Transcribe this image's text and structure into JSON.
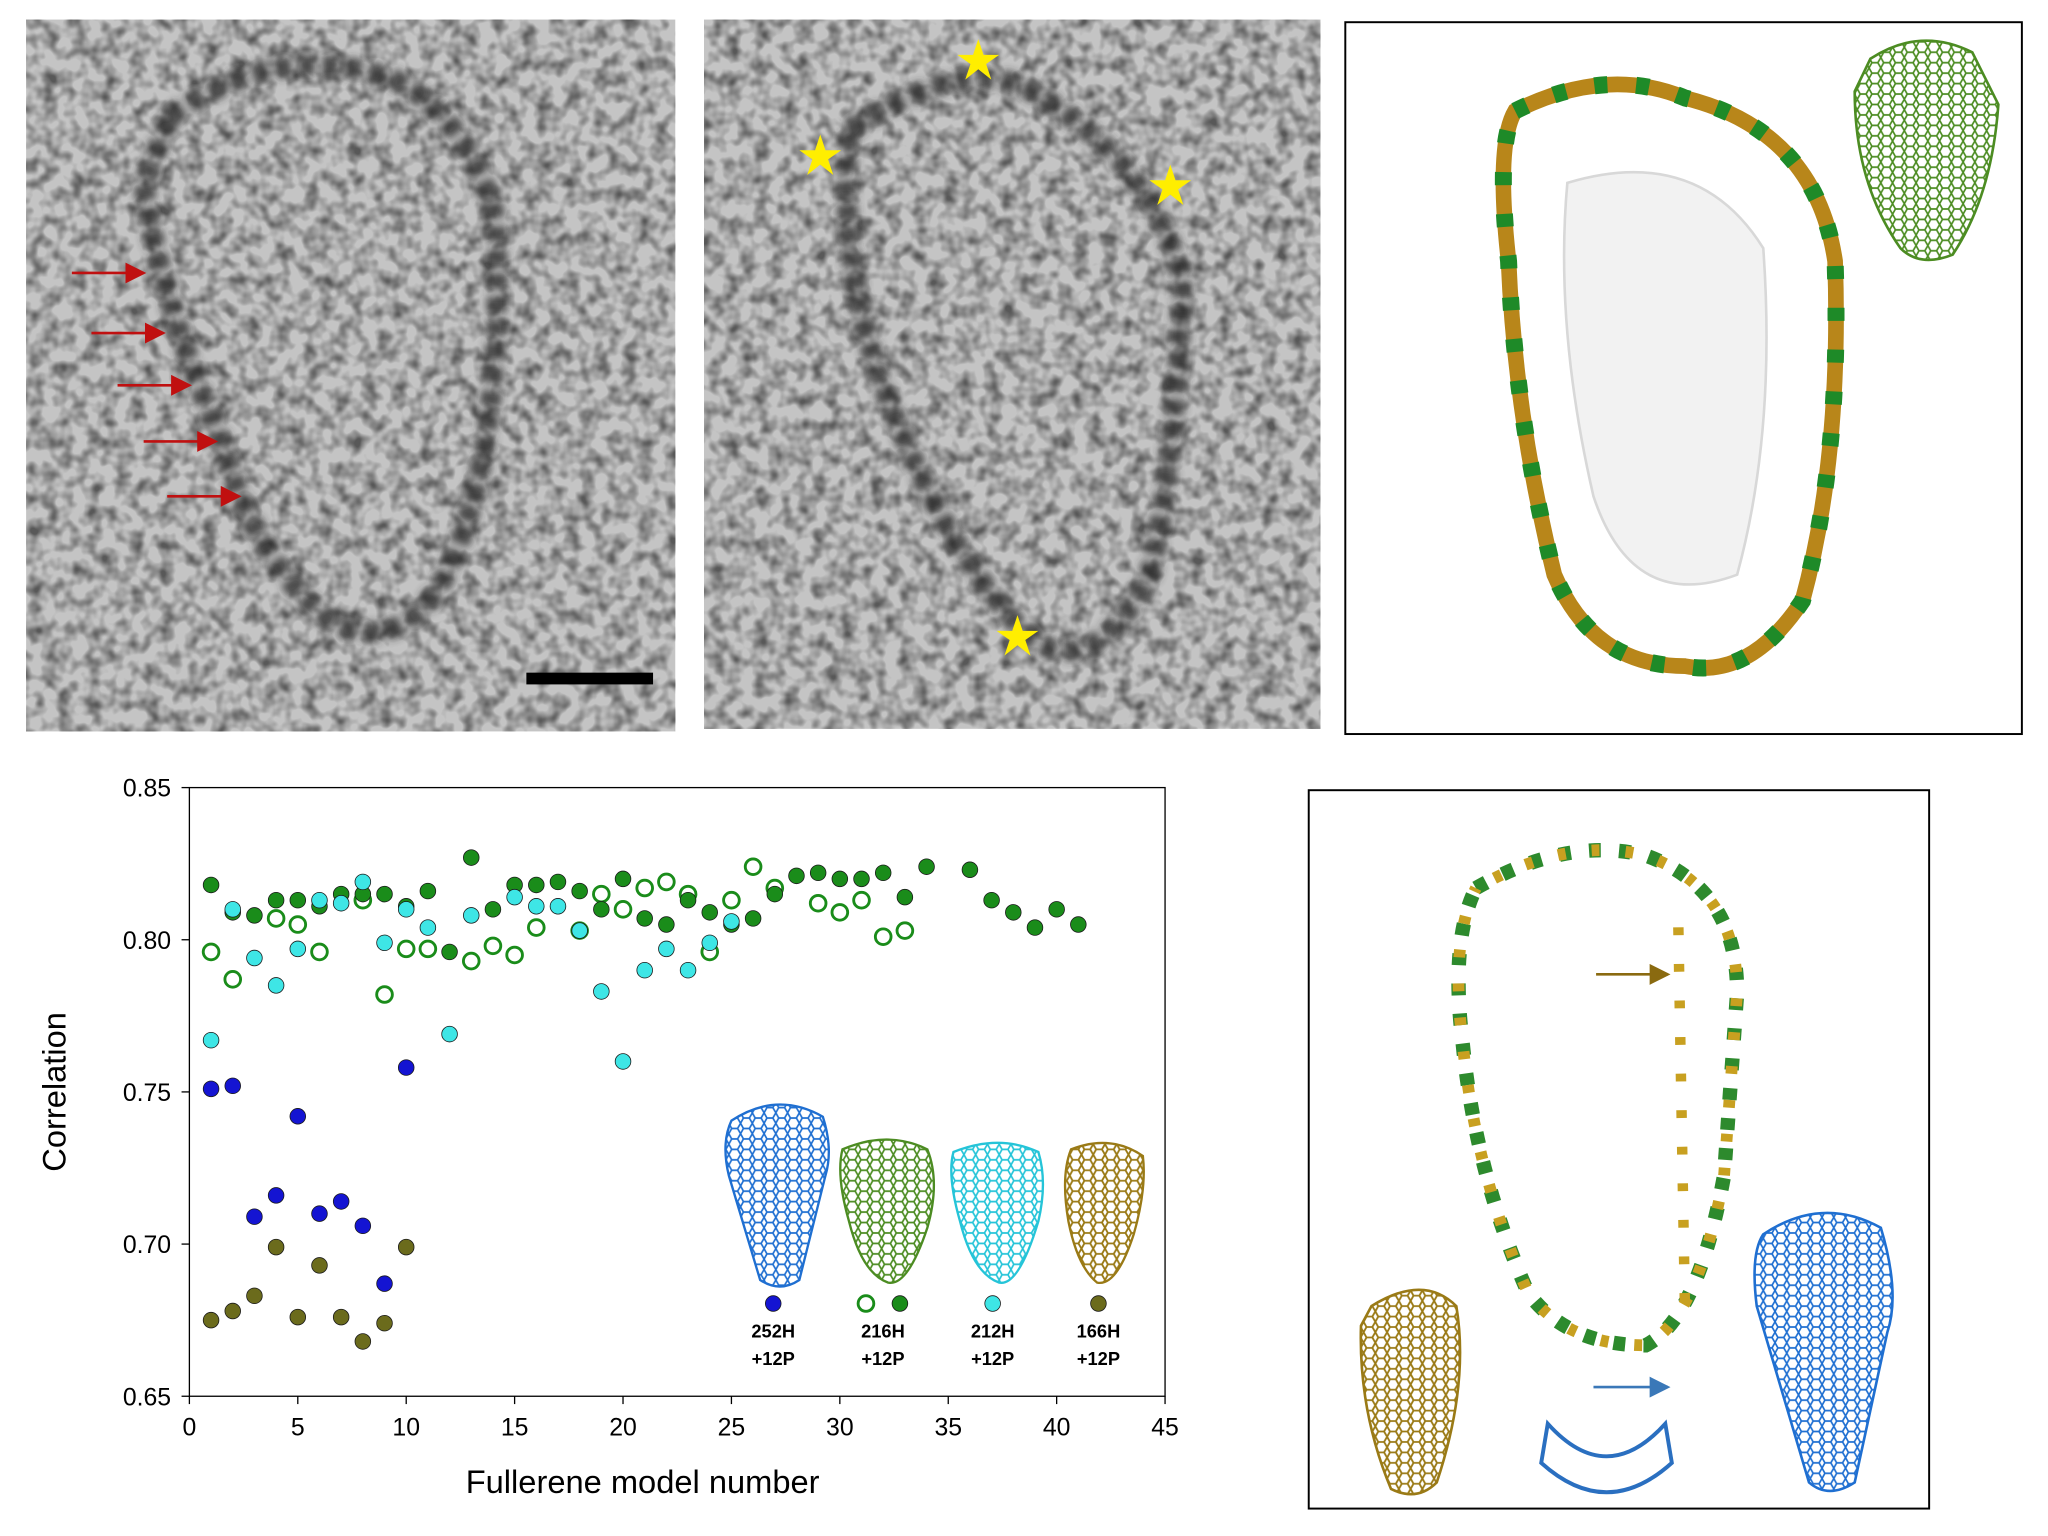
{
  "chart_data": {
    "type": "scatter",
    "xlabel": "Fullerene model number",
    "ylabel": "Correlation",
    "xlim": [
      0,
      45
    ],
    "ylim": [
      0.65,
      0.85
    ],
    "xticks": [
      0,
      5,
      10,
      15,
      20,
      25,
      30,
      35,
      40,
      45
    ],
    "yticks": [
      0.65,
      {
        "value": 0.7,
        "label": "0.70"
      },
      0.75,
      {
        "value": 0.8,
        "label": "0.80"
      },
      0.85
    ],
    "series": [
      {
        "name": "252H\n+12P",
        "color": "#1414d2",
        "marker": "filled",
        "x": [
          1,
          2,
          3,
          4,
          5,
          6,
          7,
          8,
          9,
          10
        ],
        "values": [
          0.751,
          0.752,
          0.709,
          0.716,
          0.742,
          0.71,
          0.714,
          0.706,
          0.687,
          0.758
        ]
      },
      {
        "name": "216H\n+12P",
        "color": "#1a8c1a",
        "marker": "open",
        "x": [
          1,
          2,
          4,
          5,
          6,
          8,
          9,
          10,
          11,
          13,
          14,
          15,
          16,
          18,
          19,
          20,
          21,
          22,
          23,
          24,
          25,
          26,
          27,
          29,
          30,
          31,
          32,
          33
        ],
        "values": [
          0.796,
          0.787,
          0.807,
          0.805,
          0.796,
          0.813,
          0.782,
          0.797,
          0.797,
          0.793,
          0.798,
          0.795,
          0.804,
          0.803,
          0.815,
          0.81,
          0.817,
          0.819,
          0.815,
          0.796,
          0.813,
          0.824,
          0.817,
          0.812,
          0.809,
          0.813,
          0.801,
          0.803
        ]
      },
      {
        "color": "#1a8c1a",
        "marker": "filled",
        "x": [
          1,
          2,
          3,
          4,
          5,
          6,
          7,
          8,
          9,
          10,
          11,
          12,
          13,
          14,
          15,
          16,
          17,
          18,
          19,
          20,
          21,
          22,
          23,
          24,
          25,
          26,
          27,
          28,
          29,
          30,
          31,
          32,
          33,
          34,
          36,
          37,
          38,
          39,
          40,
          41
        ],
        "values": [
          0.818,
          0.809,
          0.808,
          0.813,
          0.813,
          0.811,
          0.815,
          0.815,
          0.815,
          0.811,
          0.816,
          0.796,
          0.827,
          0.81,
          0.818,
          0.818,
          0.819,
          0.816,
          0.81,
          0.82,
          0.807,
          0.805,
          0.813,
          0.809,
          0.805,
          0.807,
          0.815,
          0.821,
          0.822,
          0.82,
          0.82,
          0.822,
          0.814,
          0.824,
          0.823,
          0.813,
          0.809,
          0.804,
          0.81,
          0.805
        ]
      },
      {
        "name": "212H\n+12P",
        "color": "#3ee6e6",
        "marker": "filled",
        "x": [
          1,
          2,
          3,
          4,
          5,
          6,
          7,
          8,
          9,
          10,
          11,
          12,
          13,
          15,
          16,
          17,
          18,
          19,
          20,
          21,
          22,
          23,
          24,
          25
        ],
        "values": [
          0.767,
          0.81,
          0.794,
          0.785,
          0.797,
          0.813,
          0.812,
          0.819,
          0.799,
          0.81,
          0.804,
          0.769,
          0.808,
          0.814,
          0.811,
          0.811,
          0.803,
          0.783,
          0.76,
          0.79,
          0.797,
          0.79,
          0.799,
          0.806
        ]
      },
      {
        "name": "166H\n+12P",
        "color": "#6b6b1c",
        "marker": "filled",
        "x": [
          1,
          2,
          3,
          4,
          5,
          6,
          7,
          8,
          9,
          10
        ],
        "values": [
          0.675,
          0.678,
          0.683,
          0.699,
          0.676,
          0.693,
          0.676,
          0.668,
          0.674,
          0.699
        ]
      }
    ]
  }
}
